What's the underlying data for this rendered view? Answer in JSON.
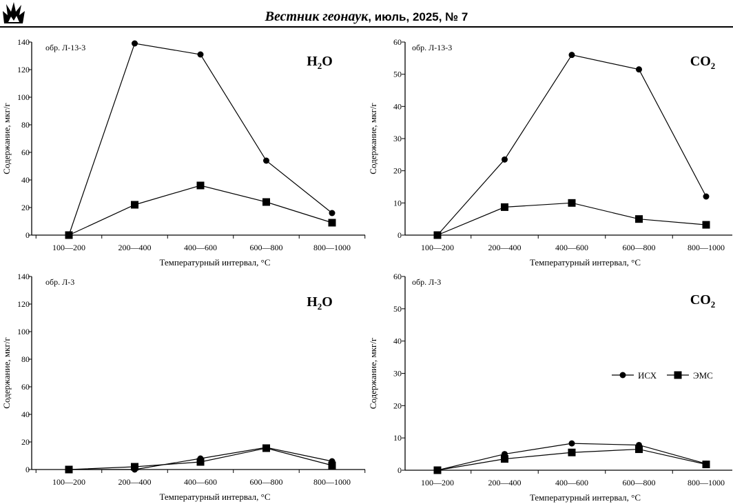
{
  "header": {
    "journal_name": "Вестник геонаук",
    "issue": ", июль, 2025, № 7"
  },
  "chart_data": [
    {
      "type": "line",
      "panel": "top-left",
      "sample_label": "обр. Л-13-3",
      "species_base": "H",
      "species_sub": "2",
      "species_tail": "O",
      "categories": [
        "100—200",
        "200—400",
        "400—600",
        "600—800",
        "800—1000"
      ],
      "xlabel": "Температурный интервал, °С",
      "ylabel": "Содержание, мкг/г",
      "ylim": [
        0,
        140
      ],
      "yticks": [
        0,
        20,
        40,
        60,
        80,
        100,
        120,
        140
      ],
      "grid": false,
      "series": [
        {
          "name": "ИСХ",
          "marker": "circle",
          "values": [
            0,
            139,
            131,
            54,
            16
          ]
        },
        {
          "name": "ЭМС",
          "marker": "square",
          "values": [
            0,
            22,
            36,
            24,
            9
          ]
        }
      ]
    },
    {
      "type": "line",
      "panel": "top-right",
      "sample_label": "обр. Л-13-3",
      "species_base": "CO",
      "species_sub": "2",
      "species_tail": "",
      "categories": [
        "100—200",
        "200—400",
        "400—600",
        "600—800",
        "800—1000"
      ],
      "xlabel": "Температурный интервал, °С",
      "ylabel": "Содержание, мкг/г",
      "ylim": [
        0,
        60
      ],
      "yticks": [
        0,
        10,
        20,
        30,
        40,
        50,
        60
      ],
      "grid": false,
      "series": [
        {
          "name": "ИСХ",
          "marker": "circle",
          "values": [
            0,
            23.5,
            56,
            51.5,
            12
          ]
        },
        {
          "name": "ЭМС",
          "marker": "square",
          "values": [
            0,
            8.7,
            10,
            5,
            3.2
          ]
        }
      ]
    },
    {
      "type": "line",
      "panel": "bottom-left",
      "sample_label": "обр. Л-3",
      "species_base": "H",
      "species_sub": "2",
      "species_tail": "O",
      "categories": [
        "100—200",
        "200—400",
        "400—600",
        "600—800",
        "800—1000"
      ],
      "xlabel": "Температурный интервал, °С",
      "ylabel": "Содержание, мкг/г",
      "ylim": [
        0,
        140
      ],
      "yticks": [
        0,
        20,
        40,
        60,
        80,
        100,
        120,
        140
      ],
      "grid": false,
      "series": [
        {
          "name": "ИСХ",
          "marker": "circle",
          "values": [
            0,
            0,
            8,
            16,
            6
          ]
        },
        {
          "name": "ЭМС",
          "marker": "square",
          "values": [
            0,
            2,
            5.5,
            15.5,
            3
          ]
        }
      ]
    },
    {
      "type": "line",
      "panel": "bottom-right",
      "sample_label": "обр. Л-3",
      "species_base": "CO",
      "species_sub": "2",
      "species_tail": "",
      "categories": [
        "100—200",
        "200—400",
        "400—600",
        "600—800",
        "800—1000"
      ],
      "xlabel": "Температурный интервал, °С",
      "ylabel": "Содержание, мкг/г",
      "ylim": [
        0,
        60
      ],
      "yticks": [
        0,
        10,
        20,
        30,
        40,
        50,
        60
      ],
      "grid": false,
      "legend": "right",
      "series": [
        {
          "name": "ИСХ",
          "marker": "circle",
          "values": [
            0,
            5,
            8.3,
            7.8,
            2
          ]
        },
        {
          "name": "ЭМС",
          "marker": "square",
          "values": [
            0,
            3.5,
            5.5,
            6.5,
            1.8
          ]
        }
      ]
    }
  ]
}
